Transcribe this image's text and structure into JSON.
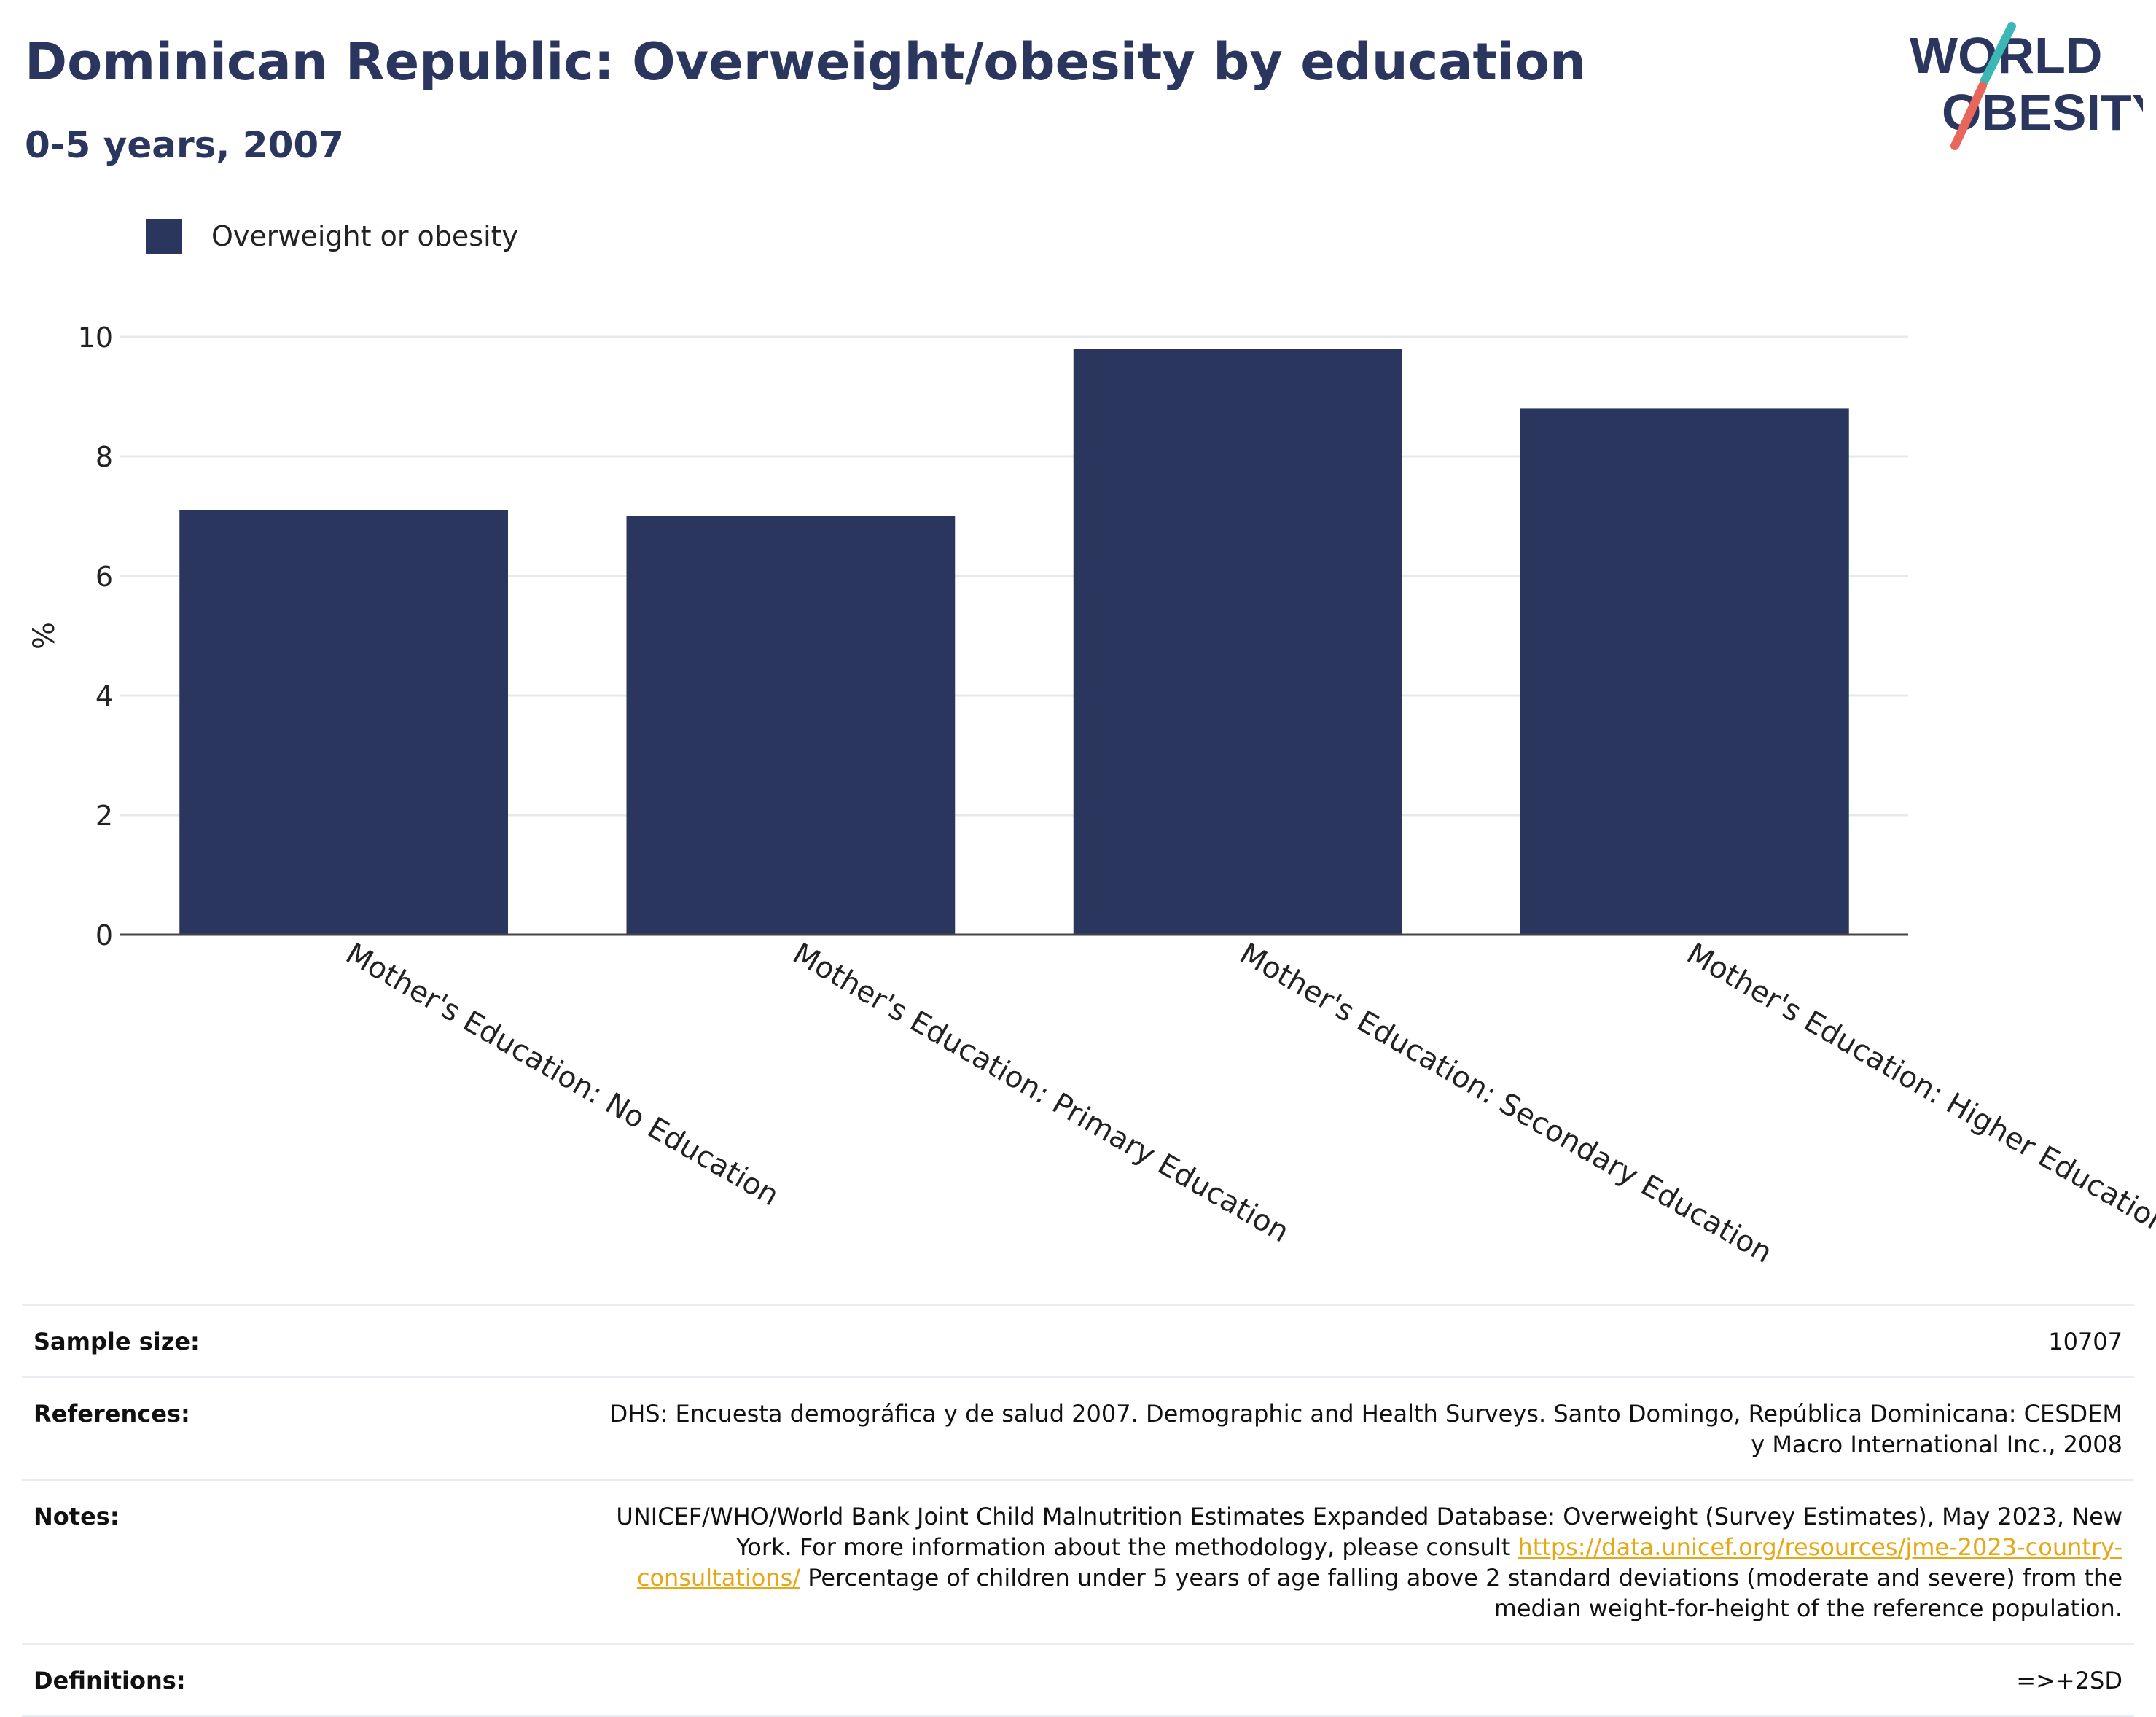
{
  "header": {
    "title": "Dominican Republic: Overweight/obesity by education",
    "subtitle": "0-5 years, 2007"
  },
  "logo": {
    "line1": "WORLD",
    "line2": "OBESITY",
    "colors": {
      "text": "#2b365f",
      "teal": "#3bb8b5",
      "coral": "#e8665a"
    }
  },
  "colors": {
    "bar": "#2b365f",
    "grid": "#e6e8ee",
    "axis": "#444444"
  },
  "chart_data": {
    "type": "bar",
    "title": "Dominican Republic: Overweight/obesity by education",
    "subtitle": "0-5 years, 2007",
    "categories": [
      "Mother's Education: No Education",
      "Mother's Education: Primary Education",
      "Mother's Education: Secondary Education",
      "Mother's Education: Higher Education"
    ],
    "series": [
      {
        "name": "Overweight or obesity",
        "values": [
          7.1,
          7.0,
          9.8,
          8.8
        ]
      }
    ],
    "xlabel": "",
    "ylabel": "%",
    "ylim": [
      0,
      10
    ],
    "yticks": [
      0,
      2,
      4,
      6,
      8,
      10
    ],
    "grid": true,
    "legend_position": "top-left"
  },
  "footer": {
    "sample_size": {
      "label": "Sample size:",
      "value": "10707"
    },
    "references": {
      "label": "References:",
      "value": "DHS: Encuesta demográfica y de salud 2007. Demographic and Health Surveys. Santo Domingo, República Dominicana: CESDEM y Macro International Inc., 2008"
    },
    "notes": {
      "label": "Notes:",
      "text_before": "UNICEF/WHO/World Bank Joint Child Malnutrition Estimates Expanded Database: Overweight (Survey Estimates), May 2023, New York. For more information about the methodology, please consult ",
      "link": "https://data.unicef.org/resources/jme-2023-country-consultations/",
      "text_after": " Percentage of children under 5 years of age falling above 2 standard deviations (moderate and severe) from the median weight-for-height of the reference population."
    },
    "definitions": {
      "label": "Definitions:",
      "value": "=>+2SD"
    }
  }
}
